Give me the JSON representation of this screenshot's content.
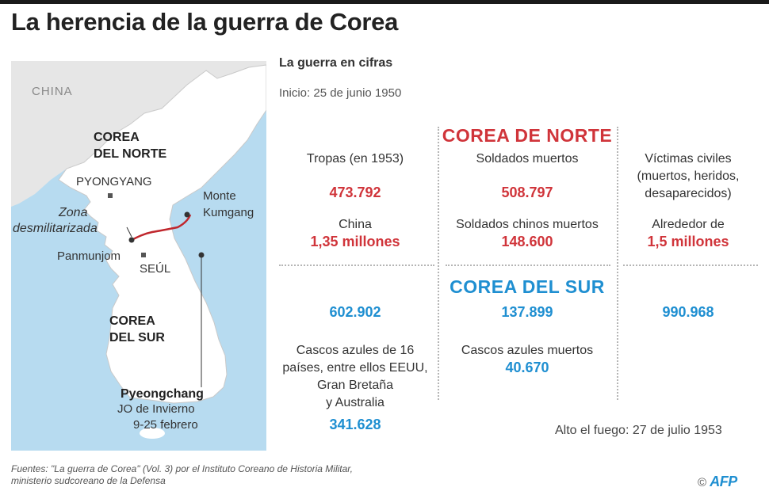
{
  "title": "La herencia de la guerra de Corea",
  "map": {
    "china": "CHINA",
    "north_line1": "COREA",
    "north_line2": "DEL NORTE",
    "pyongyang": "PYONGYANG",
    "dmz_line1": "Zona",
    "dmz_line2": "desmilitarizada",
    "monte_line1": "Monte",
    "monte_line2": "Kumgang",
    "panmunjom": "Panmunjom",
    "seoul": "SEÚL",
    "south_line1": "COREA",
    "south_line2": "DEL SUR",
    "pyeongchang": "Pyeongchang",
    "jo_line1": "JO de Invierno",
    "jo_line2": "9-25 febrero",
    "colors": {
      "sea": "#b7dbf0",
      "land": "#ffffff",
      "china": "#e6e6e6",
      "dmz": "#c0272d"
    }
  },
  "stats": {
    "subtitle": "La guerra en cifras",
    "start": "Inicio: 25 de junio 1950",
    "north_title": "COREA DE NORTE",
    "south_title": "COREA DEL SUR",
    "col_troops": "Tropas (en 1953)",
    "col_soldiers": "Soldados muertos",
    "col_civ1": "Víctimas civiles",
    "col_civ2": "(muertos, heridos,",
    "col_civ3": "desaparecidos)",
    "n_troops": "473.792",
    "n_soldiers": "508.797",
    "china_label": "China",
    "china_troops": "1,35 millones",
    "china_dead_label": "Soldados chinos muertos",
    "china_dead": "148.600",
    "civ_label": "Alrededor de",
    "civ_value": "1,5 millones",
    "s_troops": "602.902",
    "s_soldiers": "137.899",
    "s_civ": "990.968",
    "helmets1": "Cascos azules de 16",
    "helmets2": "países, entre ellos EEUU,",
    "helmets3": "Gran Bretaña",
    "helmets4": "y Australia",
    "helmets_value": "341.628",
    "helmets_dead_label": "Cascos azules muertos",
    "helmets_dead": "40.670",
    "ceasefire": "Alto el fuego: 27 de julio 1953",
    "colors": {
      "north": "#d0343a",
      "south": "#1f8fd1"
    }
  },
  "footer": {
    "source1": "Fuentes: \"La guerra de Corea\" (Vol. 3) por el Instituto Coreano de Historia Militar,",
    "source2": "ministerio sudcoreano de la Defensa",
    "copyright": "©",
    "agency": "AFP"
  }
}
